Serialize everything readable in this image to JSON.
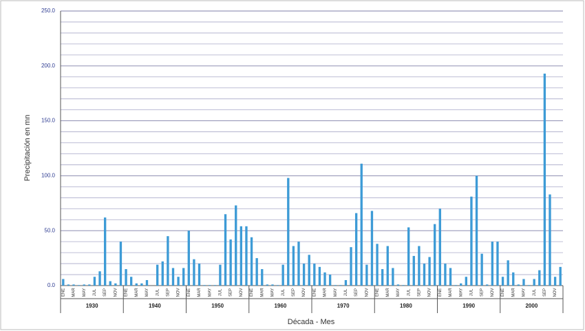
{
  "chart_data": {
    "type": "bar",
    "x_label": "Década - Mes",
    "y_label": "Precipitación en mn",
    "color": "#3d9bd6",
    "categories": [
      "ENE",
      null,
      "MAR",
      null,
      "MAY",
      null,
      "JUL",
      null,
      "SEP",
      null,
      "NOV",
      null,
      "ENE",
      null,
      "MAR",
      null,
      "MAY",
      null,
      "JUL",
      null,
      "SEP",
      null,
      "NOV",
      null,
      "ENE",
      null,
      "MAR",
      null,
      "MAY",
      null,
      "JUL",
      null,
      "SEP",
      null,
      "NOV",
      null,
      "ENE",
      null,
      "MAR",
      null,
      "MAY",
      null,
      "JUL",
      null,
      "SEP",
      null,
      "NOV",
      null,
      "ENE",
      null,
      "MAR",
      null,
      "MAY",
      null,
      "JUL",
      null,
      "SEP",
      null,
      "NOV",
      null,
      "ENE",
      null,
      "MAR",
      null,
      "MAY",
      null,
      "JUL",
      null,
      "SEP",
      null,
      "NOV",
      null,
      "ENE",
      null,
      "MAR",
      null,
      "MAY",
      null,
      "JUL",
      null,
      "SEP",
      null,
      "NOV",
      null,
      "ENE",
      null,
      "MAR",
      null,
      "MAY",
      null,
      "JUL",
      null,
      "SEP",
      null,
      "NOV",
      null
    ],
    "groups": [
      "1930",
      "1940",
      "1950",
      "1960",
      "1970",
      "1980",
      "1990",
      "2000"
    ],
    "values": [
      6,
      1,
      1,
      0.5,
      1,
      1,
      8,
      13,
      62,
      4,
      2,
      40,
      15,
      8,
      2,
      2,
      5,
      0,
      19,
      22,
      45,
      16,
      8,
      16,
      50,
      24,
      20,
      0.5,
      0.5,
      0.5,
      19,
      65,
      42,
      73,
      54,
      54,
      44,
      25,
      15,
      1,
      1,
      0.5,
      19,
      98,
      36,
      40,
      20,
      28,
      20,
      17,
      12,
      10,
      0.5,
      0.5,
      5,
      35,
      66,
      111,
      19,
      68,
      38,
      15,
      36,
      16,
      1,
      0.5,
      53,
      27,
      36,
      20,
      26,
      56,
      70,
      20,
      16,
      0.5,
      2,
      8,
      81,
      100,
      29,
      1,
      40,
      40,
      8,
      23,
      12,
      1,
      6,
      0.5,
      6,
      14,
      193,
      83,
      8,
      17
    ],
    "ylim": [
      0,
      250
    ],
    "yticks": [
      {
        "value": 0,
        "label": "0.0"
      },
      {
        "value": 50,
        "label": "50.0"
      },
      {
        "value": 100,
        "label": "100.0"
      },
      {
        "value": 150,
        "label": "150.0"
      },
      {
        "value": 200,
        "label": "200.0"
      },
      {
        "value": 250,
        "label": "250.0"
      }
    ],
    "minor_yticks": [
      10,
      20,
      30,
      40,
      60,
      70,
      80,
      90,
      110,
      120,
      130,
      140,
      160,
      170,
      180,
      190,
      210,
      220,
      230,
      240
    ],
    "grid": true
  }
}
